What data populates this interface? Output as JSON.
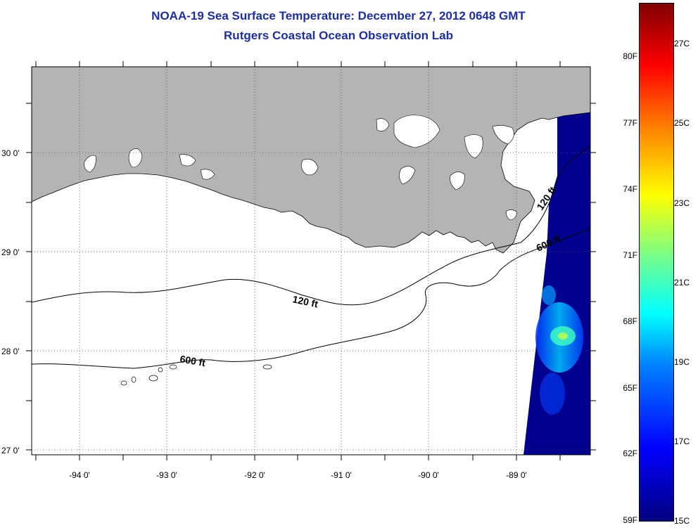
{
  "title": {
    "line1": "NOAA-19 Sea Surface Temperature:  December 27, 2012 0648 GMT",
    "line2": "Rutgers Coastal Ocean Observation Lab"
  },
  "map": {
    "lat_labels": [
      "30 0'",
      "29 0'",
      "28 0'",
      "27 0'"
    ],
    "lon_labels": [
      "-94 0'",
      "-93 0'",
      "-92 0'",
      "-91 0'",
      "-90 0'",
      "-89 0'"
    ],
    "contour_labels": [
      "120 ft",
      "120 ft",
      "600 ft",
      "600 ft"
    ],
    "colors": {
      "land": "#b4b4b4",
      "ocean": "#ffffff",
      "sst_cold": "#00008f"
    }
  },
  "colorbar": {
    "fahrenheit": [
      "80F",
      "77F",
      "74F",
      "71F",
      "68F",
      "65F",
      "62F",
      "59F"
    ],
    "celsius": [
      "27C",
      "25C",
      "23C",
      "21C",
      "19C",
      "17C",
      "15C"
    ]
  }
}
